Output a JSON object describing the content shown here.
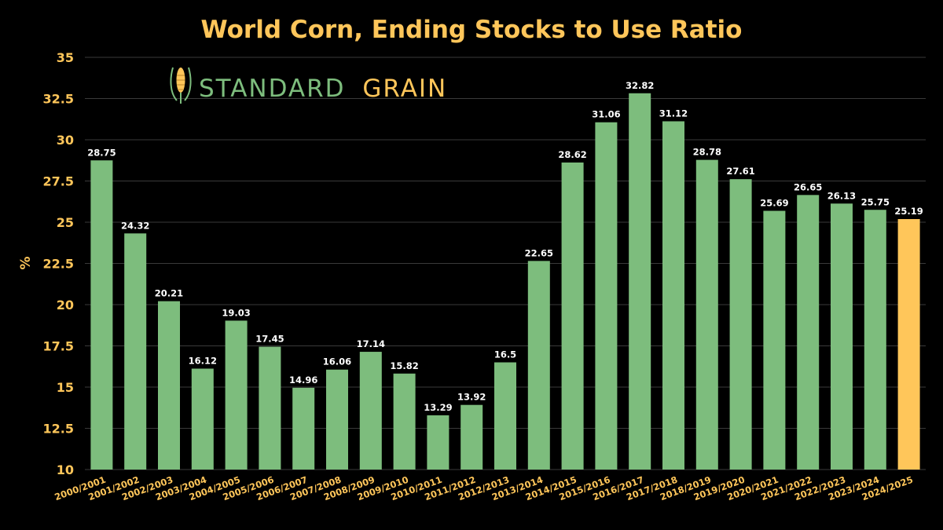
{
  "chart_data": {
    "type": "bar",
    "title": "World Corn, Ending Stocks to Use Ratio",
    "xlabel": "",
    "ylabel": "%",
    "ylim": [
      10,
      35
    ],
    "yticks": [
      "10",
      "12.5",
      "15",
      "17.5",
      "20",
      "22.5",
      "25",
      "27.5",
      "30",
      "32.5",
      "35"
    ],
    "categories": [
      "2000/2001",
      "2001/2002",
      "2002/2003",
      "2003/2004",
      "2004/2005",
      "2005/2006",
      "2006/2007",
      "2007/2008",
      "2008/2009",
      "2009/2010",
      "2010/2011",
      "2011/2012",
      "2012/2013",
      "2013/2014",
      "2014/2015",
      "2015/2016",
      "2016/2017",
      "2017/2018",
      "2018/2019",
      "2019/2020",
      "2020/2021",
      "2021/2022",
      "2022/2023",
      "2023/2024",
      "2024/2025"
    ],
    "values": [
      28.75,
      24.32,
      20.21,
      16.12,
      19.03,
      17.45,
      14.96,
      16.06,
      17.14,
      15.82,
      13.29,
      13.92,
      16.5,
      22.65,
      28.62,
      31.06,
      32.82,
      31.12,
      28.78,
      27.61,
      25.69,
      26.65,
      26.13,
      25.75,
      25.19
    ],
    "value_labels": [
      "28.75",
      "24.32",
      "20.21",
      "16.12",
      "19.03",
      "17.45",
      "14.96",
      "16.06",
      "17.14",
      "15.82",
      "13.29",
      "13.92",
      "16.5",
      "22.65",
      "28.62",
      "31.06",
      "32.82",
      "31.12",
      "28.78",
      "27.61",
      "25.69",
      "26.65",
      "26.13",
      "25.75",
      "25.19"
    ],
    "highlight_index": 24,
    "grid": true,
    "colors": {
      "bar": "#7dbd7d",
      "highlight": "#ffc65a",
      "title": "#ffc65a",
      "tick": "#ffc65a",
      "label": "#ffffff",
      "grid": "#3a3a3a",
      "background": "#000000"
    }
  },
  "logo": {
    "word1": "STANDARD",
    "word2": "GRAIN",
    "icon": "corn-icon",
    "word1_color": "#7dbd7d",
    "word2_color": "#ffc65a"
  }
}
